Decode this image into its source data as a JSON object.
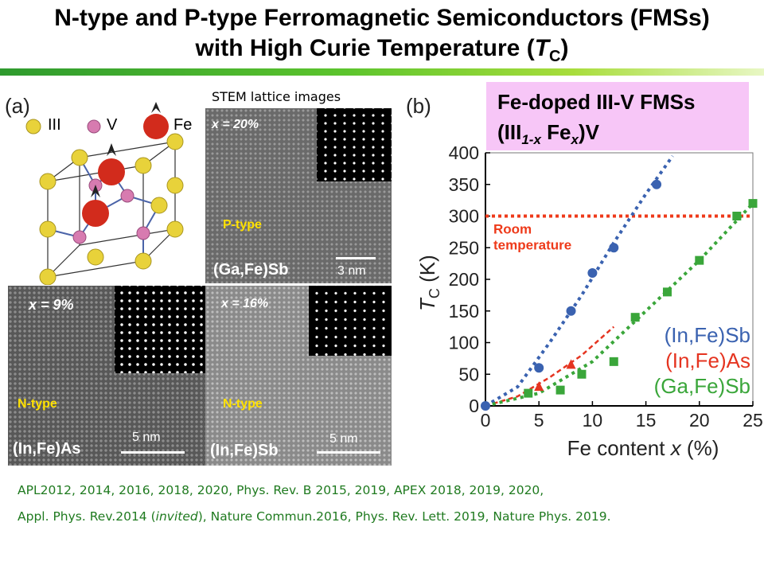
{
  "title": {
    "line1": "N-type and P-type Ferromagnetic Semiconductors (FMSs)",
    "line2_prefix": "with High Curie Temperature (",
    "line2_T": "T",
    "line2_sub": "C",
    "line2_suffix": ")"
  },
  "panel_a": {
    "label": "(a)",
    "legend": {
      "iii": "III",
      "v": "V",
      "fe": "Fe"
    },
    "stem_caption": "STEM lattice images",
    "images": [
      {
        "x_label": "x = 20%",
        "type": "P-type",
        "material": "(Ga,Fe)Sb",
        "scale": "3 nm"
      },
      {
        "x_label": "x = 9%",
        "type": "N-type",
        "material": "(In,Fe)As",
        "scale": "5 nm"
      },
      {
        "x_label": "x = 16%",
        "type": "N-type",
        "material": "(In,Fe)Sb",
        "scale": "5 nm"
      }
    ]
  },
  "panel_b": {
    "label": "(b)",
    "box_line1": "Fe-doped III-V FMSs",
    "box_line2_a": "(III",
    "box_line2_sub": "1-x",
    "box_line2_b": " Fe",
    "box_line2_x": "x",
    "box_line2_c": ")V"
  },
  "chart_data": {
    "type": "scatter",
    "xlabel_prefix": "Fe content ",
    "xlabel_var": "x",
    "xlabel_suffix": " (%)",
    "ylabel_T": "T",
    "ylabel_sub": "C",
    "ylabel_unit": " (K)",
    "xlim": [
      0,
      25
    ],
    "ylim": [
      0,
      400
    ],
    "xticks": [
      0,
      5,
      10,
      15,
      20,
      25
    ],
    "yticks": [
      0,
      50,
      100,
      150,
      200,
      250,
      300,
      350,
      400
    ],
    "room_temperature": {
      "value": 300,
      "label1": "Room",
      "label2": "temperature",
      "color": "#ee3a1a"
    },
    "series": [
      {
        "name": "(In,Fe)Sb",
        "color": "#3a62b0",
        "marker": "circle",
        "x": [
          0,
          5,
          8,
          10,
          12,
          16
        ],
        "y": [
          0,
          60,
          150,
          210,
          250,
          350
        ]
      },
      {
        "name": "(In,Fe)As",
        "color": "#e53420",
        "marker": "triangle",
        "x": [
          5,
          8
        ],
        "y": [
          30,
          65
        ]
      },
      {
        "name": "(Ga,Fe)Sb",
        "color": "#3aa63a",
        "marker": "square",
        "x": [
          4,
          7,
          9,
          12,
          14,
          17,
          20,
          23.5,
          25
        ],
        "y": [
          20,
          25,
          50,
          70,
          140,
          180,
          230,
          300,
          320
        ]
      }
    ]
  },
  "references": {
    "line1": "APL2012, 2014, 2016, 2018, 2020,  Phys. Rev. B 2015, 2019,  APEX 2018, 2019, 2020,",
    "line2_a": "Appl. Phys. Rev.2014 (",
    "line2_i": "invited",
    "line2_b": "), Nature Commun.2016, Phys. Rev. Lett. 2019, Nature Phys. 2019."
  },
  "colors": {
    "iii_atom": "#e8d23a",
    "v_atom": "#d77bb0",
    "fe_atom": "#d22b1c",
    "bond": "#4a63a8"
  }
}
